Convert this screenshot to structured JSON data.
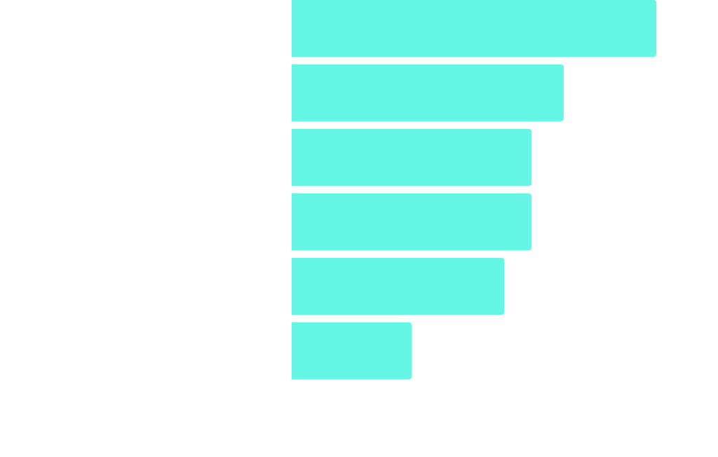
{
  "chart_data": {
    "type": "bar",
    "orientation": "horizontal",
    "categories": [
      null,
      null,
      null,
      null,
      null,
      null
    ],
    "values": [
      100,
      74.6,
      65.8,
      65.8,
      58.3,
      32.9
    ],
    "color": "#66f6e6"
  }
}
